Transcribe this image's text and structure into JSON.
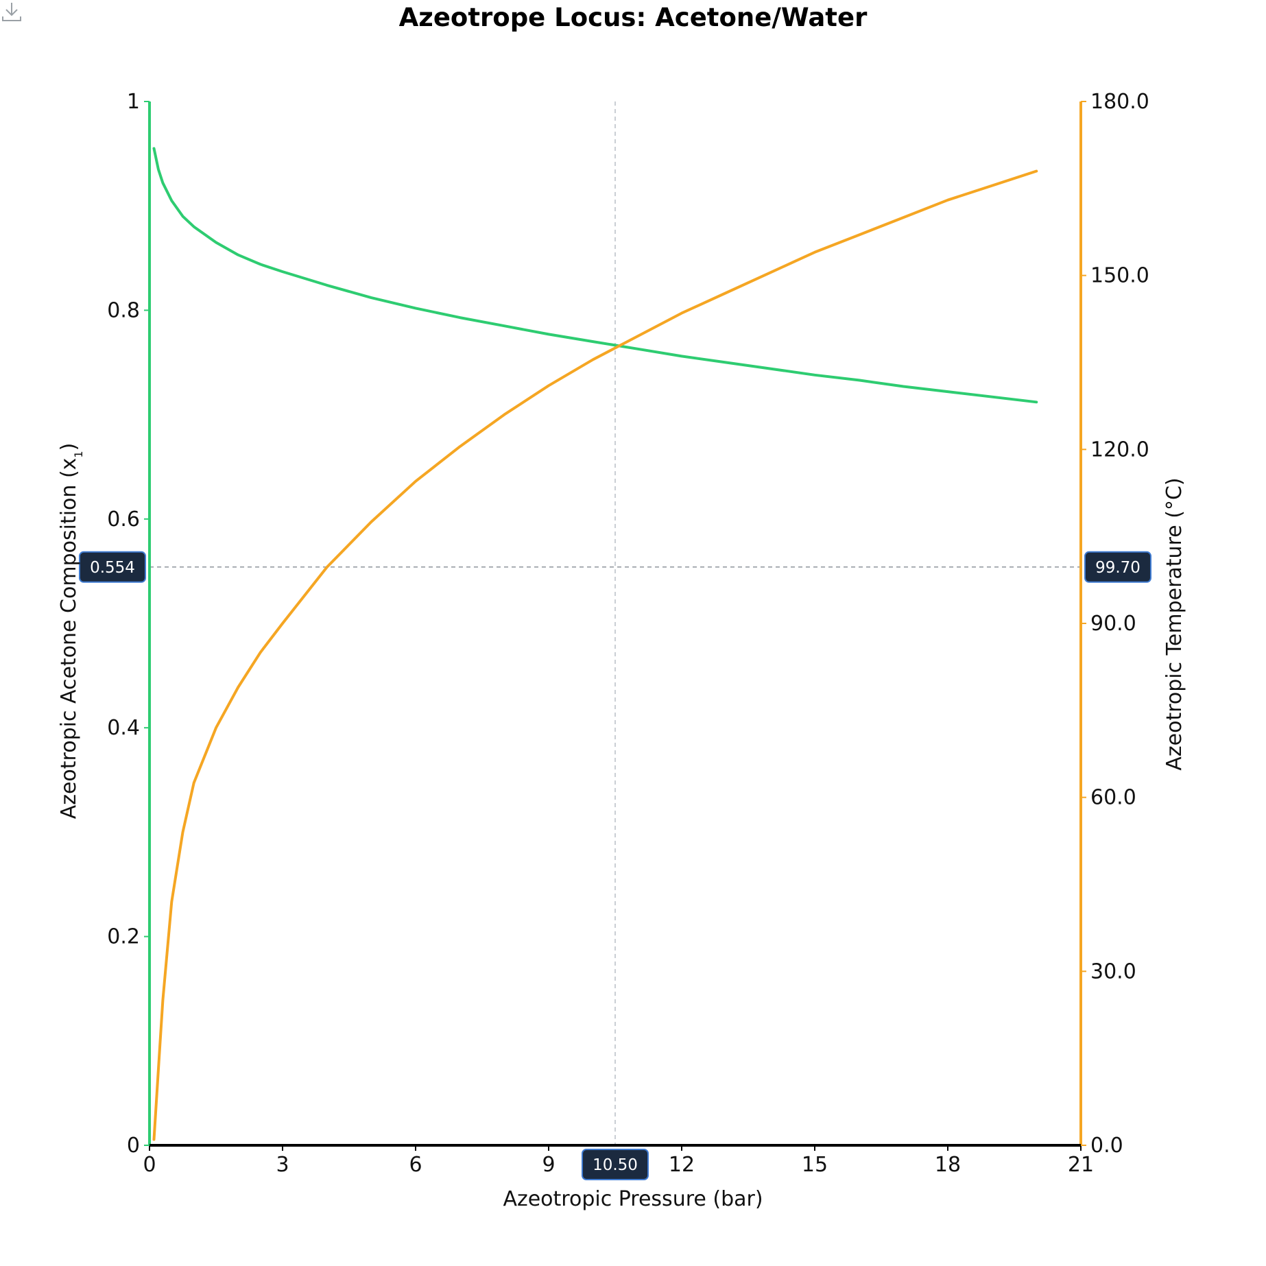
{
  "chart_data": {
    "type": "line",
    "title": "Azeotrope Locus: Acetone/Water",
    "xlabel": "Azeotropic Pressure (bar)",
    "ylabel_left": "Azeotropic Acetone Composition (x",
    "ylabel_left_subscript": "1",
    "ylabel_left_suffix": ")",
    "ylabel_right": "Azeotropic Temperature (°C)",
    "xlim": [
      0,
      21
    ],
    "ylim_left": [
      0,
      1
    ],
    "ylim_right": [
      0,
      180
    ],
    "x_ticks": [
      "0",
      "3",
      "6",
      "9",
      "12",
      "15",
      "18",
      "21"
    ],
    "y_left_ticks": [
      "0",
      "0.2",
      "0.4",
      "0.6",
      "0.8",
      "1"
    ],
    "y_right_ticks": [
      "0.0",
      "30.0",
      "60.0",
      "90.0",
      "120.0",
      "150.0",
      "180.0"
    ],
    "series": [
      {
        "axis": "left",
        "color": "#2ecc71",
        "x": [
          0.1,
          0.15,
          0.2,
          0.3,
          0.5,
          0.75,
          1,
          1.5,
          2,
          2.5,
          3,
          4,
          5,
          6,
          7,
          8,
          9,
          10,
          11,
          12,
          13,
          14,
          15,
          16,
          17,
          18,
          19,
          20
        ],
        "y": [
          0.955,
          0.945,
          0.935,
          0.922,
          0.905,
          0.89,
          0.88,
          0.865,
          0.853,
          0.844,
          0.837,
          0.824,
          0.812,
          0.802,
          0.793,
          0.785,
          0.777,
          0.77,
          0.763,
          0.756,
          0.75,
          0.744,
          0.738,
          0.733,
          0.727,
          0.722,
          0.717,
          0.712
        ]
      },
      {
        "axis": "right",
        "color": "#f5a623",
        "x": [
          0.1,
          0.2,
          0.3,
          0.5,
          0.75,
          1,
          1.5,
          2,
          2.5,
          3,
          4,
          5,
          6,
          7,
          8,
          9,
          10,
          11,
          12,
          13,
          14,
          15,
          16,
          17,
          18,
          19,
          20
        ],
        "y": [
          1.0,
          13.0,
          25.0,
          42.0,
          54.0,
          62.5,
          72.0,
          79.0,
          85.0,
          90.0,
          99.7,
          107.5,
          114.5,
          120.5,
          126.0,
          131.0,
          135.5,
          139.5,
          143.5,
          147.0,
          150.5,
          154.0,
          157.0,
          160.0,
          163.0,
          165.5,
          168.0
        ]
      }
    ],
    "crosshair": {
      "x_label": "10.50",
      "y_left_label": "0.554",
      "y_right_label": "99.70",
      "x": 10.5,
      "y_left": 0.554
    },
    "grid": false
  },
  "icons": {
    "download": "download-icon"
  }
}
